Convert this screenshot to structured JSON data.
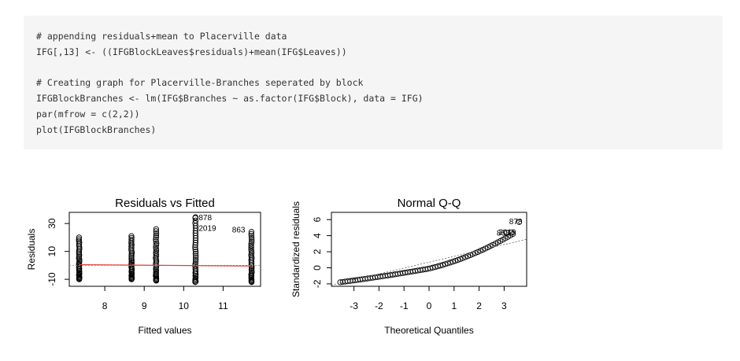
{
  "code": {
    "lines": [
      "# appending residuals+mean to Placerville data",
      "IFG[,13] <- ((IFGBlockLeaves$residuals)+mean(IFG$Leaves))",
      "",
      "# Creating graph for Placerville-Branches seperated by block",
      "IFGBlockBranches <- lm(IFG$Branches ~ as.factor(IFG$Block), data = IFG)",
      "par(mfrow = c(2,2))",
      "plot(IFGBlockBranches)"
    ]
  },
  "chart_data": [
    {
      "type": "scatter",
      "title": "Residuals vs Fitted",
      "xlabel": "Fitted values",
      "ylabel": "Residuals",
      "xlim": [
        7.1,
        11.95
      ],
      "ylim": [
        -15,
        38
      ],
      "xticks": [
        8,
        9,
        10,
        11
      ],
      "yticks": [
        -10,
        10,
        30
      ],
      "groups": [
        {
          "x": 7.35,
          "ymin": -10,
          "ymax": 20
        },
        {
          "x": 8.68,
          "ymin": -10,
          "ymax": 21
        },
        {
          "x": 9.3,
          "ymin": -11,
          "ymax": 26
        },
        {
          "x": 10.3,
          "ymin": -12,
          "ymax": 34
        },
        {
          "x": 11.72,
          "ymin": -12,
          "ymax": 24
        }
      ],
      "smooth": {
        "x": [
          7.35,
          11.72
        ],
        "y": [
          0.5,
          -0.5
        ],
        "color": "#e0403a"
      },
      "annotations": [
        {
          "label": "878",
          "x": 10.3,
          "y": 34.5
        },
        {
          "label": "2019",
          "x": 10.3,
          "y": 27
        },
        {
          "label": "863",
          "x": 11.72,
          "y": 26
        }
      ]
    },
    {
      "type": "scatter",
      "title": "Normal Q-Q",
      "xlabel": "Theoretical Quantiles",
      "ylabel": "Standardized residuals",
      "xlim": [
        -3.9,
        3.9
      ],
      "ylim": [
        -2.3,
        6.9
      ],
      "xticks": [
        -3,
        -2,
        -1,
        0,
        1,
        2,
        3
      ],
      "yticks": [
        -2,
        0,
        2,
        4,
        6
      ],
      "refline": {
        "x": [
          -3.9,
          3.9
        ],
        "y": [
          -2.15,
          3.55
        ]
      },
      "annotations": [
        {
          "label": "878",
          "x": 3.6,
          "y": 5.8
        },
        {
          "label": "2019",
          "x": 3.35,
          "y": 4.5
        },
        {
          "label": "863",
          "x": 3.1,
          "y": 4.4
        }
      ]
    }
  ]
}
